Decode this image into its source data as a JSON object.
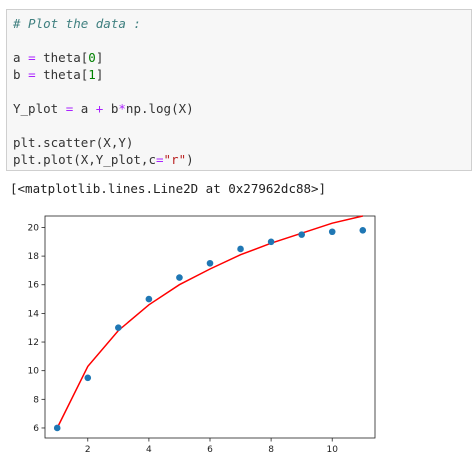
{
  "code_cell": {
    "lines": [
      {
        "segments": [
          {
            "text": "# Plot the data :",
            "cls": "comment"
          }
        ]
      },
      {
        "segments": []
      },
      {
        "segments": [
          {
            "text": "a "
          },
          {
            "text": "=",
            "cls": "op"
          },
          {
            "text": " theta["
          },
          {
            "text": "0",
            "cls": "num"
          },
          {
            "text": "]"
          }
        ]
      },
      {
        "segments": [
          {
            "text": "b "
          },
          {
            "text": "=",
            "cls": "op"
          },
          {
            "text": " theta["
          },
          {
            "text": "1",
            "cls": "num"
          },
          {
            "text": "]"
          }
        ]
      },
      {
        "segments": []
      },
      {
        "segments": [
          {
            "text": "Y_plot "
          },
          {
            "text": "=",
            "cls": "op"
          },
          {
            "text": " a "
          },
          {
            "text": "+",
            "cls": "op"
          },
          {
            "text": " b"
          },
          {
            "text": "*",
            "cls": "op"
          },
          {
            "text": "np.log(X)"
          }
        ]
      },
      {
        "segments": []
      },
      {
        "segments": [
          {
            "text": "plt.scatter(X,Y)"
          }
        ]
      },
      {
        "segments": [
          {
            "text": "plt.plot(X,Y_plot,c"
          },
          {
            "text": "=",
            "cls": "op"
          },
          {
            "text": "\"r\"",
            "cls": "str"
          },
          {
            "text": ")"
          }
        ]
      }
    ]
  },
  "output": {
    "text": "[<matplotlib.lines.Line2D at 0x27962dc88>]"
  },
  "chart_data": {
    "type": "scatter",
    "xlim": [
      0.6,
      11.4
    ],
    "ylim": [
      5.3,
      20.8
    ],
    "x_ticks": [
      2,
      4,
      6,
      8,
      10
    ],
    "y_ticks": [
      6,
      8,
      10,
      12,
      14,
      16,
      18,
      20
    ],
    "grid": false,
    "series": [
      {
        "type": "scatter",
        "color": "#1f77b4",
        "x": [
          1,
          2,
          3,
          4,
          5,
          6,
          7,
          8,
          9,
          10,
          11
        ],
        "y": [
          6.0,
          9.5,
          13.0,
          15.0,
          16.5,
          17.5,
          18.5,
          19.0,
          19.5,
          19.7,
          19.8
        ]
      },
      {
        "type": "line",
        "color": "#ff0000",
        "x": [
          1,
          2,
          3,
          4,
          5,
          6,
          7,
          8,
          9,
          10,
          11
        ],
        "y": [
          6.0,
          10.3,
          12.8,
          14.6,
          16.0,
          17.1,
          18.1,
          18.9,
          19.6,
          20.3,
          20.8
        ]
      }
    ]
  }
}
